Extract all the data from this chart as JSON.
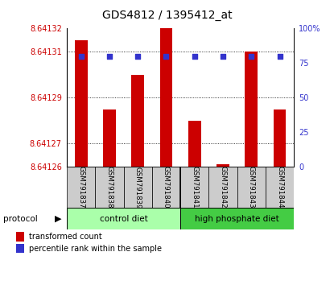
{
  "title": "GDS4812 / 1395412_at",
  "samples": [
    "GSM791837",
    "GSM791838",
    "GSM791839",
    "GSM791840",
    "GSM791841",
    "GSM791842",
    "GSM791843",
    "GSM791844"
  ],
  "red_values": [
    8.641315,
    8.641285,
    8.6413,
    8.641325,
    8.64128,
    8.641261,
    8.64131,
    8.641285
  ],
  "blue_values": [
    80,
    80,
    80,
    80,
    80,
    80,
    80,
    80
  ],
  "ylim_left": [
    8.64126,
    8.64132
  ],
  "ylim_right": [
    0,
    100
  ],
  "yticks_left": [
    8.64126,
    8.64127,
    8.64129,
    8.64131,
    8.64132
  ],
  "ytick_labels_left": [
    "8.64126",
    "8.64127",
    "8.64129",
    "8.64131",
    "8.64132"
  ],
  "ytick_labels_right_vals": [
    0,
    25,
    50,
    75,
    100
  ],
  "right_tick_labels": [
    "0",
    "25",
    "50",
    "75",
    "100%"
  ],
  "dotted_grid_lines": [
    8.64127,
    8.64129,
    8.64131
  ],
  "protocol_label": "protocol",
  "bar_color": "#cc0000",
  "dot_color": "#3333cc",
  "title_fontsize": 10,
  "tick_label_color_left": "#cc0000",
  "tick_label_color_right": "#3333cc",
  "sample_bg_color": "#cccccc",
  "group1_color": "#aaffaa",
  "group2_color": "#44cc44",
  "legend_red_label": "transformed count",
  "legend_blue_label": "percentile rank within the sample"
}
